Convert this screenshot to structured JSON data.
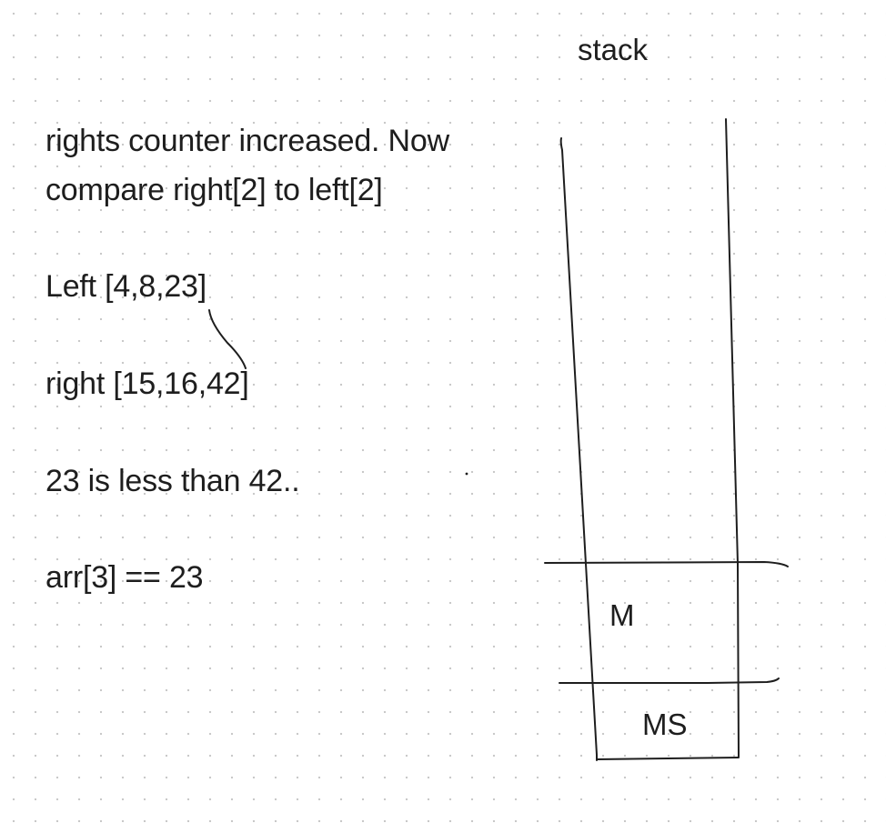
{
  "whiteboard": {
    "background": "#ffffff",
    "ink_color": "#1e1e1e",
    "grid_dot_color": "#c9c9c9",
    "notes": {
      "line1": "rights counter increased. Now",
      "line2": "compare right[2] to left[2]",
      "left_array": "Left [4,8,23]",
      "right_array": "right [15,16,42]",
      "comparison": "23 is less than 42..",
      "assignment": "arr[3] == 23"
    },
    "stack": {
      "title": "stack",
      "frames": [
        "M",
        "MS"
      ]
    }
  }
}
